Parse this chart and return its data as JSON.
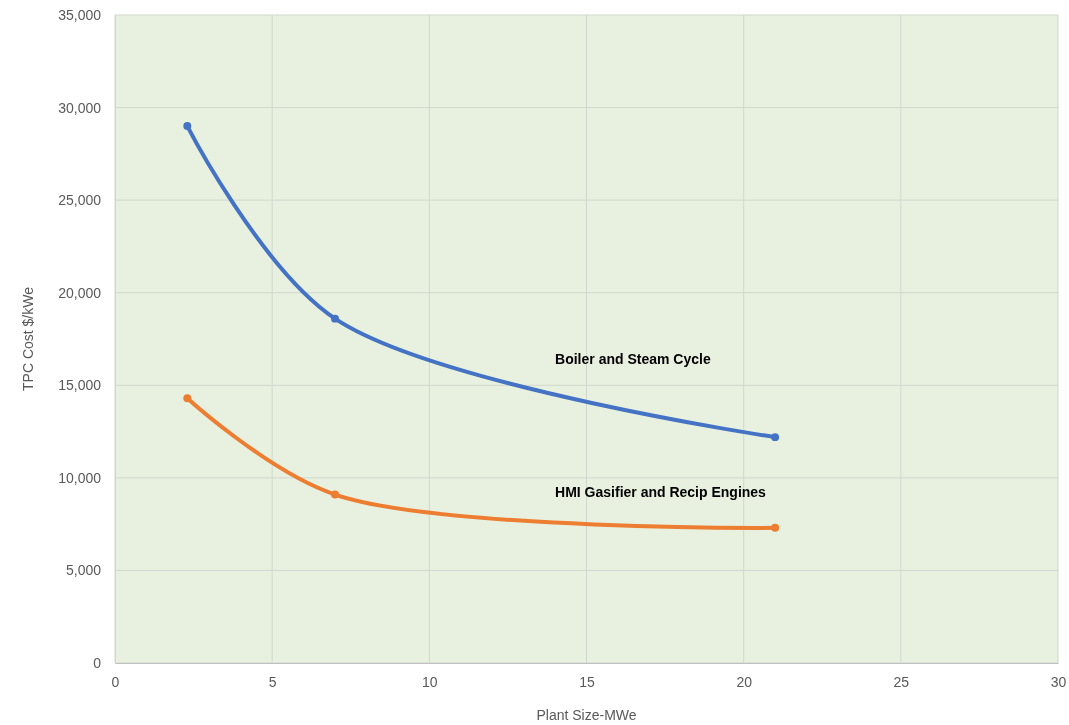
{
  "chart_data": {
    "type": "line",
    "xlabel": "Plant Size-MWe",
    "ylabel": "TPC Cost $/kWe",
    "xlim": [
      0,
      30
    ],
    "xticks": [
      0,
      5,
      10,
      15,
      20,
      25,
      30
    ],
    "ylim": [
      0,
      35000
    ],
    "yticks": [
      {
        "value": 0,
        "label": "0"
      },
      {
        "value": 5000,
        "label": "5,000"
      },
      {
        "value": 10000,
        "label": "10,000"
      },
      {
        "value": 15000,
        "label": "15,000"
      },
      {
        "value": 20000,
        "label": "20,000"
      },
      {
        "value": 25000,
        "label": "25,000"
      },
      {
        "value": 30000,
        "label": "30,000"
      },
      {
        "value": 35000,
        "label": "35,000"
      }
    ],
    "grid": true,
    "marker": "circle",
    "line_style": "solid",
    "series": [
      {
        "name": "Boiler and Steam Cycle",
        "color": "#4472c4",
        "x": [
          2.3,
          7,
          21
        ],
        "values": [
          29000,
          18600,
          12200
        ]
      },
      {
        "name": "HMI Gasifier and Recip Engines",
        "color": "#ed7d31",
        "x": [
          2.3,
          7,
          21
        ],
        "values": [
          14300,
          9100,
          7300
        ]
      }
    ]
  }
}
